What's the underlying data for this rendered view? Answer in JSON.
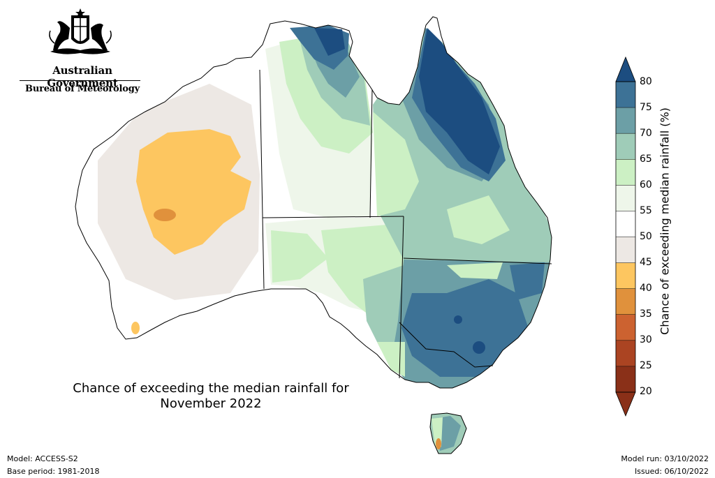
{
  "logo": {
    "org": "Australian Government",
    "agency": "Bureau of Meteorology",
    "emblem": "coat-of-arms-icon"
  },
  "map": {
    "title_line1": "Chance of exceeding the median rainfall for",
    "title_line2": "November 2022",
    "region": "Australia",
    "regions_shown": [
      "Western Australia",
      "Northern Territory",
      "South Australia",
      "Queensland",
      "New South Wales",
      "Victoria",
      "Tasmania"
    ]
  },
  "colorbar": {
    "title": "Chance of exceeding median rainfall (%)",
    "ticks": [
      "80",
      "75",
      "70",
      "65",
      "60",
      "55",
      "50",
      "45",
      "40",
      "35",
      "30",
      "25",
      "20"
    ],
    "colors": [
      "#1c4d80",
      "#3d7296",
      "#6c9fa6",
      "#9fccb8",
      "#ccf0c4",
      "#eef6ea",
      "#ffffff",
      "#ede8e4",
      "#fdc660",
      "#e0913c",
      "#cc6230",
      "#ab4422",
      "#8a3018"
    ],
    "extend_high_color": "#1c4d80",
    "extend_low_color": "#8a3018"
  },
  "meta": {
    "model": "Model: ACCESS-S2",
    "base_period": "Base period: 1981-2018",
    "model_run": "Model run: 03/10/2022",
    "issued": "Issued: 06/10/2022"
  }
}
